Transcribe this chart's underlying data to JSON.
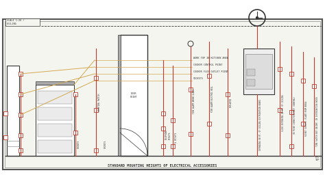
{
  "bg_color": "#ffffff",
  "drawing_bg": "#f5f5f0",
  "border_outer": "#555555",
  "border_inner": "#888888",
  "red": "#c0392b",
  "orange": "#d4a850",
  "dark": "#333333",
  "gray": "#777777",
  "lgray": "#aaaaaa",
  "title_text": "STANDARD MOUNTING HEIGHTS OF ELECTRICAL ACCESSORIES",
  "title_fontsize": 3.8,
  "header_text1": "SCALE 1:20 /",
  "header_text2": "CEILING",
  "floor_label1": "FFL",
  "floor_label2": "TOP"
}
